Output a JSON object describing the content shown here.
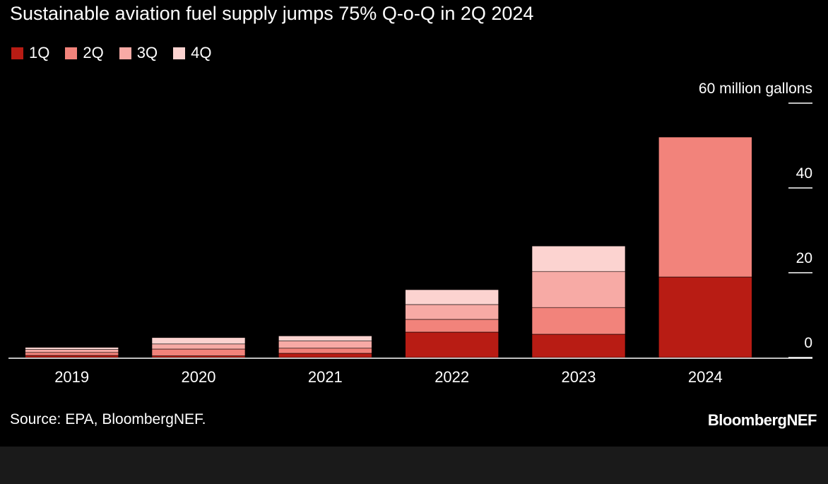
{
  "title": "Sustainable aviation fuel supply jumps 75% Q-o-Q in 2Q 2024",
  "source": "Source: EPA, BloombergNEF.",
  "brand": "BloombergNEF",
  "colors": {
    "1Q": "#b81c14",
    "2Q": "#f2837b",
    "3Q": "#f7aaa5",
    "4Q": "#fcd3d0",
    "background": "#000000",
    "footer": "#1a1a1a"
  },
  "chart_data": {
    "type": "bar",
    "stacked": true,
    "title": "Sustainable aviation fuel supply jumps 75% Q-o-Q in 2Q 2024",
    "y_unit_label": "60 million gallons",
    "yticks": [
      "0",
      "20",
      "40",
      "60 million gallons"
    ],
    "ylim": [
      0,
      60
    ],
    "legend_position": "top-left",
    "grid": false,
    "categories": [
      "2019",
      "2020",
      "2021",
      "2022",
      "2023",
      "2024"
    ],
    "series": [
      {
        "name": "1Q",
        "color": "#b81c14",
        "values": [
          0.5,
          0.4,
          1.0,
          6.0,
          5.5,
          19.0
        ]
      },
      {
        "name": "2Q",
        "color": "#f2837b",
        "values": [
          0.7,
          1.6,
          1.2,
          3.0,
          6.3,
          33.0
        ]
      },
      {
        "name": "3Q",
        "color": "#f7aaa5",
        "values": [
          0.7,
          1.2,
          1.7,
          3.5,
          8.5,
          0
        ]
      },
      {
        "name": "4Q",
        "color": "#fcd3d0",
        "values": [
          0.5,
          1.5,
          1.2,
          3.5,
          6.0,
          0
        ]
      }
    ]
  }
}
